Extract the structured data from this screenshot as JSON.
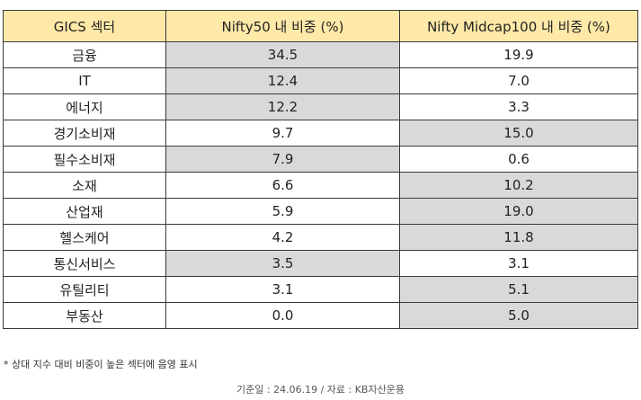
{
  "table": {
    "headers": [
      "GICS 섹터",
      "Nifty50 내 비중 (%)",
      "Nifty Midcap100 내 비중 (%)"
    ],
    "rows": [
      {
        "sector": "금융",
        "nifty50": "34.5",
        "midcap100": "19.9",
        "highlight": "nifty50"
      },
      {
        "sector": "IT",
        "nifty50": "12.4",
        "midcap100": "7.0",
        "highlight": "nifty50"
      },
      {
        "sector": "에너지",
        "nifty50": "12.2",
        "midcap100": "3.3",
        "highlight": "nifty50"
      },
      {
        "sector": "경기소비재",
        "nifty50": "9.7",
        "midcap100": "15.0",
        "highlight": "midcap100"
      },
      {
        "sector": "필수소비재",
        "nifty50": "7.9",
        "midcap100": "0.6",
        "highlight": "nifty50"
      },
      {
        "sector": "소재",
        "nifty50": "6.6",
        "midcap100": "10.2",
        "highlight": "midcap100"
      },
      {
        "sector": "산업재",
        "nifty50": "5.9",
        "midcap100": "19.0",
        "highlight": "midcap100"
      },
      {
        "sector": "헬스케어",
        "nifty50": "4.2",
        "midcap100": "11.8",
        "highlight": "midcap100"
      },
      {
        "sector": "통신서비스",
        "nifty50": "3.5",
        "midcap100": "3.1",
        "highlight": "nifty50"
      },
      {
        "sector": "유틸리티",
        "nifty50": "3.1",
        "midcap100": "5.1",
        "highlight": "midcap100"
      },
      {
        "sector": "부동산",
        "nifty50": "0.0",
        "midcap100": "5.0",
        "highlight": "midcap100"
      }
    ]
  },
  "colors": {
    "header_bg": "#ffe9a8",
    "highlight_bg": "#d9d9d9",
    "border": "#3a3a3a"
  },
  "footnote": "* 상대 지수 대비 비중이 높은 섹터에 음영 표시",
  "source": "기준일 : 24.06.19 / 자료 : KB자산운용"
}
